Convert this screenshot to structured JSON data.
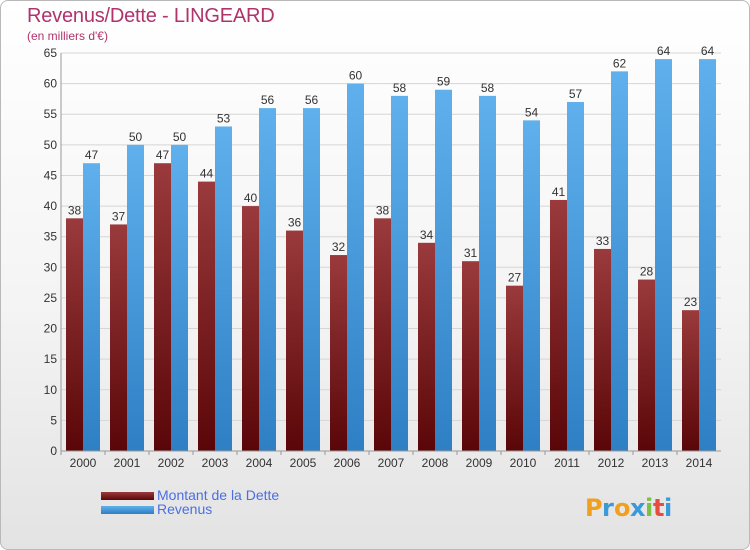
{
  "header": {
    "title": "Revenus/Dette - LINGEARD",
    "subtitle": "(en milliers d'€)"
  },
  "colors": {
    "debt": "#7a1a1d",
    "revenue": "#4ea2e3",
    "axis_text": "#333333",
    "grid": "#d6d6d6"
  },
  "chart_data": {
    "type": "bar",
    "title": "Revenus/Dette - LINGEARD",
    "subtitle": "(en milliers d'€)",
    "categories": [
      "2000",
      "2001",
      "2002",
      "2003",
      "2004",
      "2005",
      "2006",
      "2007",
      "2008",
      "2009",
      "2010",
      "2011",
      "2012",
      "2013",
      "2014"
    ],
    "series": [
      {
        "name": "Montant de la Dette",
        "values": [
          38,
          37,
          47,
          44,
          40,
          36,
          32,
          38,
          34,
          31,
          27,
          41,
          33,
          28,
          23
        ]
      },
      {
        "name": "Revenus",
        "values": [
          47,
          50,
          50,
          53,
          56,
          56,
          60,
          58,
          59,
          58,
          54,
          57,
          62,
          64,
          64
        ]
      }
    ],
    "ylim": [
      0,
      65
    ],
    "yticks": [
      0,
      5,
      10,
      15,
      20,
      25,
      30,
      35,
      40,
      45,
      50,
      55,
      60,
      65
    ],
    "grid": true,
    "legend_position": "bottom-left"
  },
  "legend": {
    "debt_label": "Montant de la Dette",
    "revenue_label": "Revenus"
  },
  "logo": {
    "text": "Proxiti",
    "icon": "proxiti-logo"
  }
}
